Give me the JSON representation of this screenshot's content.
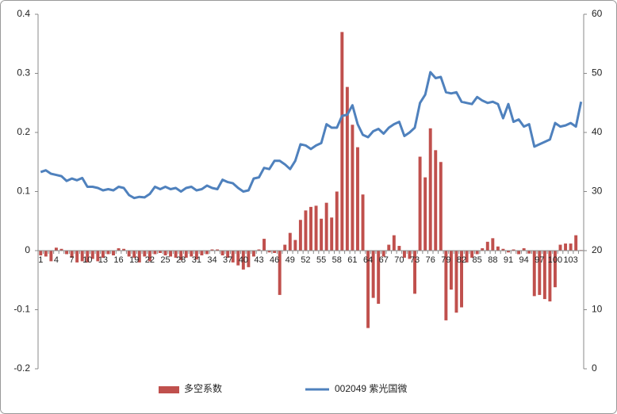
{
  "chart_data": {
    "type": "bar",
    "series": [
      {
        "name": "多空系数",
        "color": "#c0504d",
        "values": [
          -0.008,
          -0.01,
          -0.018,
          0.005,
          0.003,
          -0.006,
          -0.012,
          -0.02,
          -0.018,
          -0.02,
          -0.014,
          -0.018,
          -0.012,
          -0.006,
          -0.008,
          0.004,
          0.003,
          -0.01,
          -0.012,
          -0.02,
          -0.01,
          -0.018,
          -0.006,
          -0.004,
          -0.008,
          -0.01,
          -0.012,
          -0.016,
          -0.012,
          -0.01,
          -0.015,
          -0.008,
          -0.006,
          0.002,
          0.002,
          -0.008,
          -0.012,
          -0.02,
          -0.025,
          -0.032,
          -0.028,
          -0.01,
          0.002,
          0.02,
          -0.003,
          -0.004,
          -0.075,
          0.01,
          0.03,
          0.018,
          0.052,
          0.068,
          0.074,
          0.076,
          0.054,
          0.081,
          0.056,
          0.1,
          0.37,
          0.277,
          0.213,
          0.175,
          0.095,
          -0.131,
          -0.08,
          -0.09,
          -0.01,
          0.01,
          0.026,
          0.008,
          -0.012,
          -0.014,
          -0.073,
          0.159,
          0.124,
          0.207,
          0.17,
          0.15,
          -0.118,
          -0.066,
          -0.105,
          -0.096,
          -0.02,
          -0.012,
          -0.006,
          0.004,
          0.015,
          0.021,
          0.007,
          0.003,
          -0.003,
          0.002,
          -0.006,
          0.004,
          -0.005,
          -0.077,
          -0.075,
          -0.082,
          -0.086,
          -0.062,
          0.01,
          0.012,
          0.012,
          0.026,
          0.001
        ]
      },
      {
        "name": "002049 紫光国微",
        "color": "#4f81bd",
        "type": "line",
        "axis": "y2",
        "values": [
          33.3,
          33.6,
          33.0,
          32.8,
          32.6,
          31.8,
          32.2,
          31.9,
          32.3,
          30.8,
          30.8,
          30.6,
          30.2,
          30.4,
          30.2,
          30.8,
          30.6,
          29.4,
          28.9,
          29.1,
          29.0,
          29.6,
          30.8,
          30.4,
          30.8,
          30.4,
          30.6,
          30.0,
          30.6,
          30.8,
          30.2,
          30.4,
          31.0,
          30.6,
          30.4,
          32.0,
          31.6,
          31.4,
          30.6,
          30.0,
          30.2,
          32.2,
          32.4,
          34.0,
          33.8,
          35.2,
          35.2,
          34.6,
          33.8,
          35.2,
          38.0,
          37.8,
          37.2,
          37.8,
          38.2,
          41.4,
          40.8,
          40.8,
          42.8,
          43.0,
          44.6,
          41.4,
          39.6,
          39.2,
          40.2,
          40.6,
          39.8,
          40.8,
          41.4,
          41.8,
          39.4,
          40.0,
          40.8,
          45.0,
          46.4,
          50.2,
          49.2,
          49.4,
          46.8,
          46.6,
          46.8,
          45.2,
          45.0,
          44.8,
          46.0,
          45.4,
          45.0,
          45.2,
          44.8,
          42.4,
          44.8,
          41.8,
          42.2,
          41.0,
          41.4,
          37.6,
          38.0,
          38.4,
          38.8,
          41.6,
          41.0,
          41.2,
          41.6,
          41.0,
          45.2
        ]
      }
    ],
    "categories": [
      1,
      null,
      null,
      4,
      null,
      null,
      7,
      null,
      null,
      10,
      null,
      null,
      13,
      null,
      null,
      16,
      null,
      null,
      19,
      null,
      null,
      22,
      null,
      null,
      25,
      null,
      null,
      28,
      null,
      null,
      31,
      null,
      null,
      34,
      null,
      null,
      37,
      null,
      null,
      40,
      null,
      null,
      43,
      null,
      null,
      46,
      null,
      null,
      49,
      null,
      null,
      52,
      null,
      null,
      55,
      null,
      null,
      58,
      null,
      null,
      61,
      null,
      null,
      64,
      null,
      null,
      67,
      null,
      null,
      70,
      null,
      null,
      73,
      null,
      null,
      76,
      null,
      null,
      79,
      null,
      null,
      82,
      null,
      null,
      85,
      null,
      null,
      88,
      null,
      null,
      91,
      null,
      null,
      94,
      null,
      null,
      97,
      null,
      null,
      100,
      null,
      null,
      103,
      null,
      null
    ],
    "ylim": [
      -0.2,
      0.4
    ],
    "yticks": [
      -0.2,
      -0.1,
      0,
      0.1,
      0.2,
      0.3,
      0.4
    ],
    "y2lim": [
      0,
      60
    ],
    "y2ticks": [
      0,
      10,
      20,
      30,
      40,
      50,
      60
    ],
    "legend": "bottom"
  }
}
